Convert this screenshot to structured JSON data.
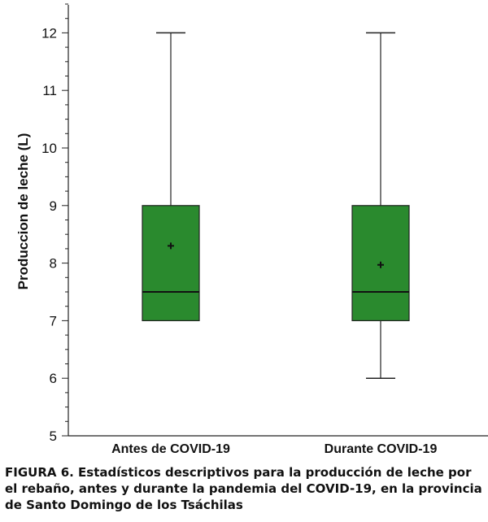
{
  "chart_data": {
    "type": "box",
    "ylabel": "Produccion de leche (L)",
    "ylim": [
      5,
      12.5
    ],
    "yticks": [
      5,
      6,
      7,
      8,
      9,
      10,
      11,
      12
    ],
    "categories": [
      "Antes de COVID-19",
      "Durante COVID-19"
    ],
    "boxes": [
      {
        "category": "Antes de COVID-19",
        "min": 7,
        "q1": 7,
        "median": 7.5,
        "q3": 9,
        "max": 12,
        "mean": 8.3
      },
      {
        "category": "Durante COVID-19",
        "min": 6,
        "q1": 7,
        "median": 7.5,
        "q3": 9,
        "max": 12,
        "mean": 7.97
      }
    ],
    "box_color": "#2a8a2e",
    "grid": false
  },
  "caption": "FIGURA 6. Estadísticos descriptivos para la producción de leche por el rebaño, antes y durante la pandemia del COVID-19, en la provincia de Santo Domingo de los Tsáchilas"
}
